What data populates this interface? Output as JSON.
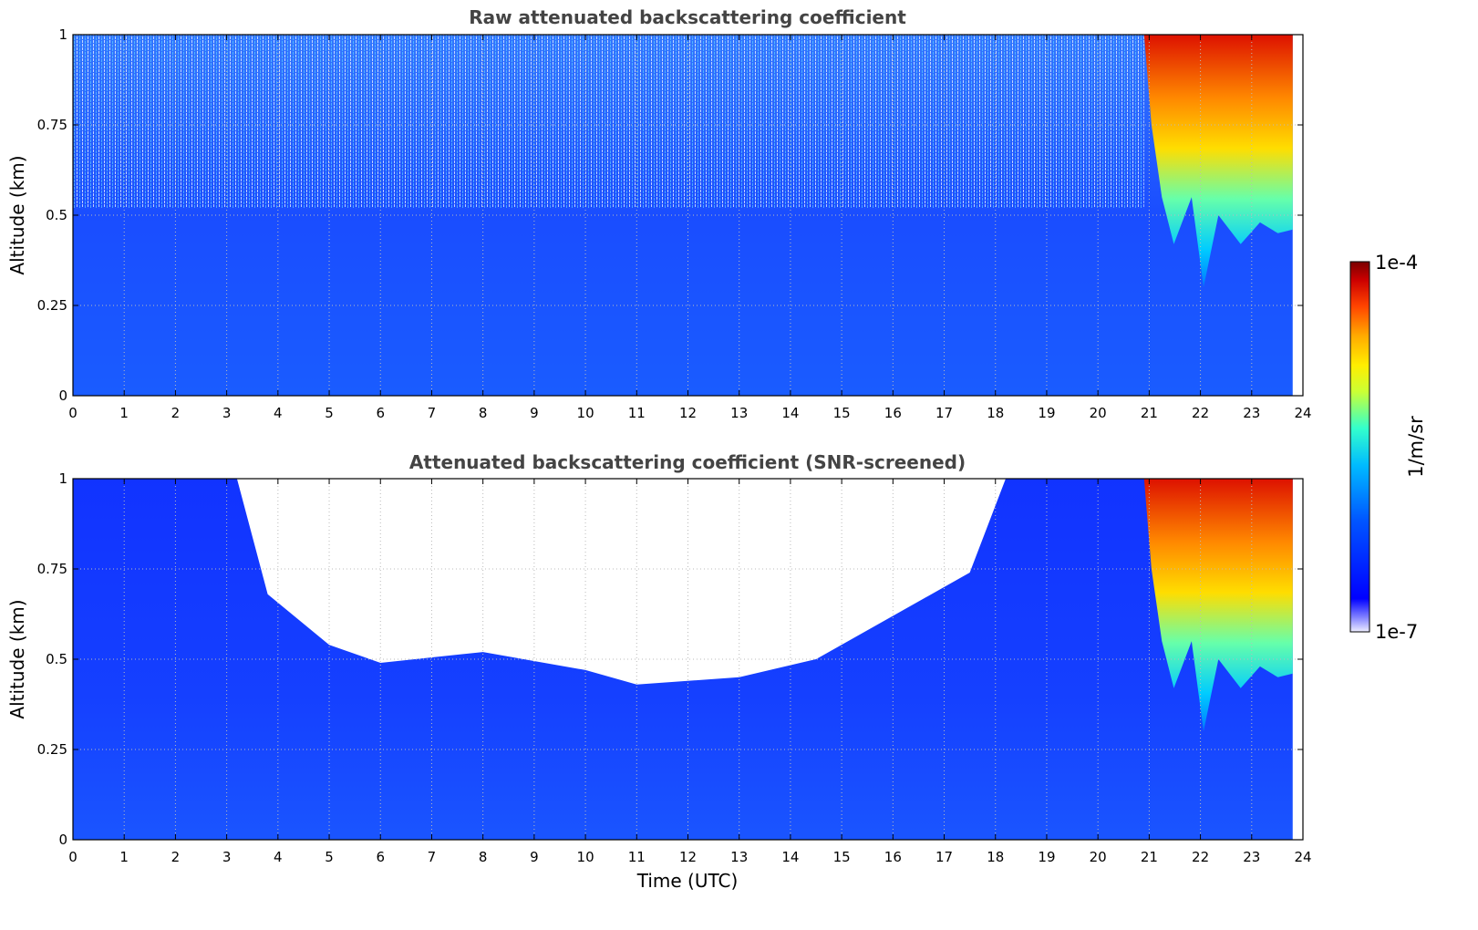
{
  "chart_data": [
    {
      "type": "heatmap",
      "title": "Raw attenuated backscattering coefficient",
      "xlabel": "",
      "ylabel": "Altitude (km)",
      "xlim": [
        0,
        24
      ],
      "ylim": [
        0,
        1
      ],
      "x_ticks": [
        "0",
        "1",
        "2",
        "3",
        "4",
        "5",
        "6",
        "7",
        "8",
        "9",
        "10",
        "11",
        "12",
        "13",
        "14",
        "15",
        "16",
        "17",
        "18",
        "19",
        "20",
        "21",
        "22",
        "23",
        "24"
      ],
      "y_ticks": [
        "0",
        "0.25",
        "0.5",
        "0.75",
        "1"
      ],
      "grid": true,
      "data_end_time": 23.8,
      "features": {
        "background": "noisy weak signal (blue) over 0–24 UTC, noisier above 0.5 km",
        "cloud": {
          "start_time": 20.9,
          "end_time": 23.8,
          "base_altitude_min": 0.3,
          "top_altitude": 1.0,
          "peak_value": "1e-4"
        }
      }
    },
    {
      "type": "heatmap",
      "title": "Attenuated backscattering coefficient (SNR-screened)",
      "xlabel": "Time (UTC)",
      "ylabel": "Altitude (km)",
      "xlim": [
        0,
        24
      ],
      "ylim": [
        0,
        1
      ],
      "x_ticks": [
        "0",
        "1",
        "2",
        "3",
        "4",
        "5",
        "6",
        "7",
        "8",
        "9",
        "10",
        "11",
        "12",
        "13",
        "14",
        "15",
        "16",
        "17",
        "18",
        "19",
        "20",
        "21",
        "22",
        "23",
        "24"
      ],
      "y_ticks": [
        "0",
        "0.25",
        "0.5",
        "0.75",
        "1"
      ],
      "grid": true,
      "data_end_time": 23.8,
      "screened_region": {
        "description": "white (masked) area above signal boundary",
        "boundary": [
          {
            "time": 0,
            "altitude": 1.0
          },
          {
            "time": 3.2,
            "altitude": 1.0
          },
          {
            "time": 3.8,
            "altitude": 0.68
          },
          {
            "time": 5,
            "altitude": 0.54
          },
          {
            "time": 6,
            "altitude": 0.49
          },
          {
            "time": 8,
            "altitude": 0.52
          },
          {
            "time": 10,
            "altitude": 0.47
          },
          {
            "time": 11,
            "altitude": 0.43
          },
          {
            "time": 13,
            "altitude": 0.45
          },
          {
            "time": 14.5,
            "altitude": 0.5
          },
          {
            "time": 16,
            "altitude": 0.62
          },
          {
            "time": 17.5,
            "altitude": 0.74
          },
          {
            "time": 18.2,
            "altitude": 1.0
          },
          {
            "time": 24,
            "altitude": 1.0
          }
        ]
      },
      "cloud": {
        "start_time": 20.9,
        "end_time": 23.8,
        "base_altitude_min": 0.3,
        "top_altitude": 1.0,
        "peak_value": "1e-4"
      }
    }
  ],
  "colorbar": {
    "label": "1/m/sr",
    "max_label": "1e-4",
    "min_label": "1e-7",
    "scale": "log",
    "colors": [
      "#eeeeff",
      "#0000ff",
      "#0066ff",
      "#00ccff",
      "#33ffcc",
      "#aaff44",
      "#ffff00",
      "#ffaa00",
      "#ff4400",
      "#cc0000",
      "#7a0000"
    ]
  }
}
